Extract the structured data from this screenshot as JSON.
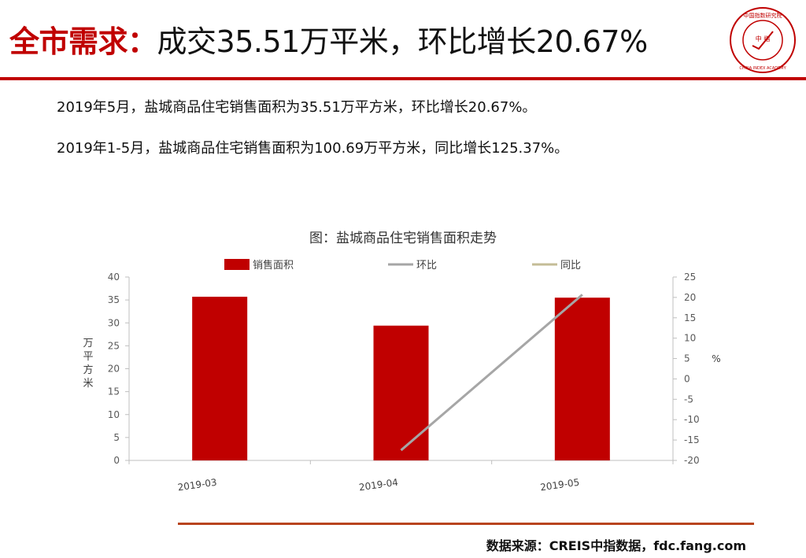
{
  "header": {
    "title_lead": "全市需求：",
    "title_rest": "成交35.51万平米，环比增长20.67%"
  },
  "logo": {
    "text_top": "中国指数研究院",
    "text_center": "中 指",
    "text_bottom": "CHINA INDEX ACADEMY"
  },
  "body": {
    "line1": "2019年5月，盐城商品住宅销售面积为35.51万平方米，环比增长20.67%。",
    "line2": "2019年1-5月，盐城商品住宅销售面积为100.69万平方米，同比增长125.37%。"
  },
  "chart_title": "图：盐城商品住宅销售面积走势",
  "chart_data": {
    "type": "bar",
    "title": "图：盐城商品住宅销售面积走势",
    "categories": [
      "2019-03",
      "2019-04",
      "2019-05"
    ],
    "series": [
      {
        "name": "销售面积",
        "type": "bar",
        "axis": "left",
        "color": "#c00000",
        "values": [
          35.7,
          29.4,
          35.5
        ]
      },
      {
        "name": "环比",
        "type": "line",
        "axis": "right",
        "color": "#a6a6a6",
        "values": [
          null,
          -17.5,
          20.67
        ]
      },
      {
        "name": "同比",
        "type": "line",
        "axis": "right",
        "color": "#c4bd97",
        "values": [
          null,
          null,
          null
        ]
      }
    ],
    "ylabel": "万平方米",
    "ylim": [
      0,
      40
    ],
    "yticks": [
      0,
      5,
      10,
      15,
      20,
      25,
      30,
      35,
      40
    ],
    "y2label": "%",
    "y2lim": [
      -20,
      25
    ],
    "y2ticks": [
      -20,
      -15,
      -10,
      -5,
      0,
      5,
      10,
      15,
      20,
      25
    ],
    "legend_position": "top",
    "grid": false
  },
  "source": "数据来源：CREIS中指数据，fdc.fang.com"
}
